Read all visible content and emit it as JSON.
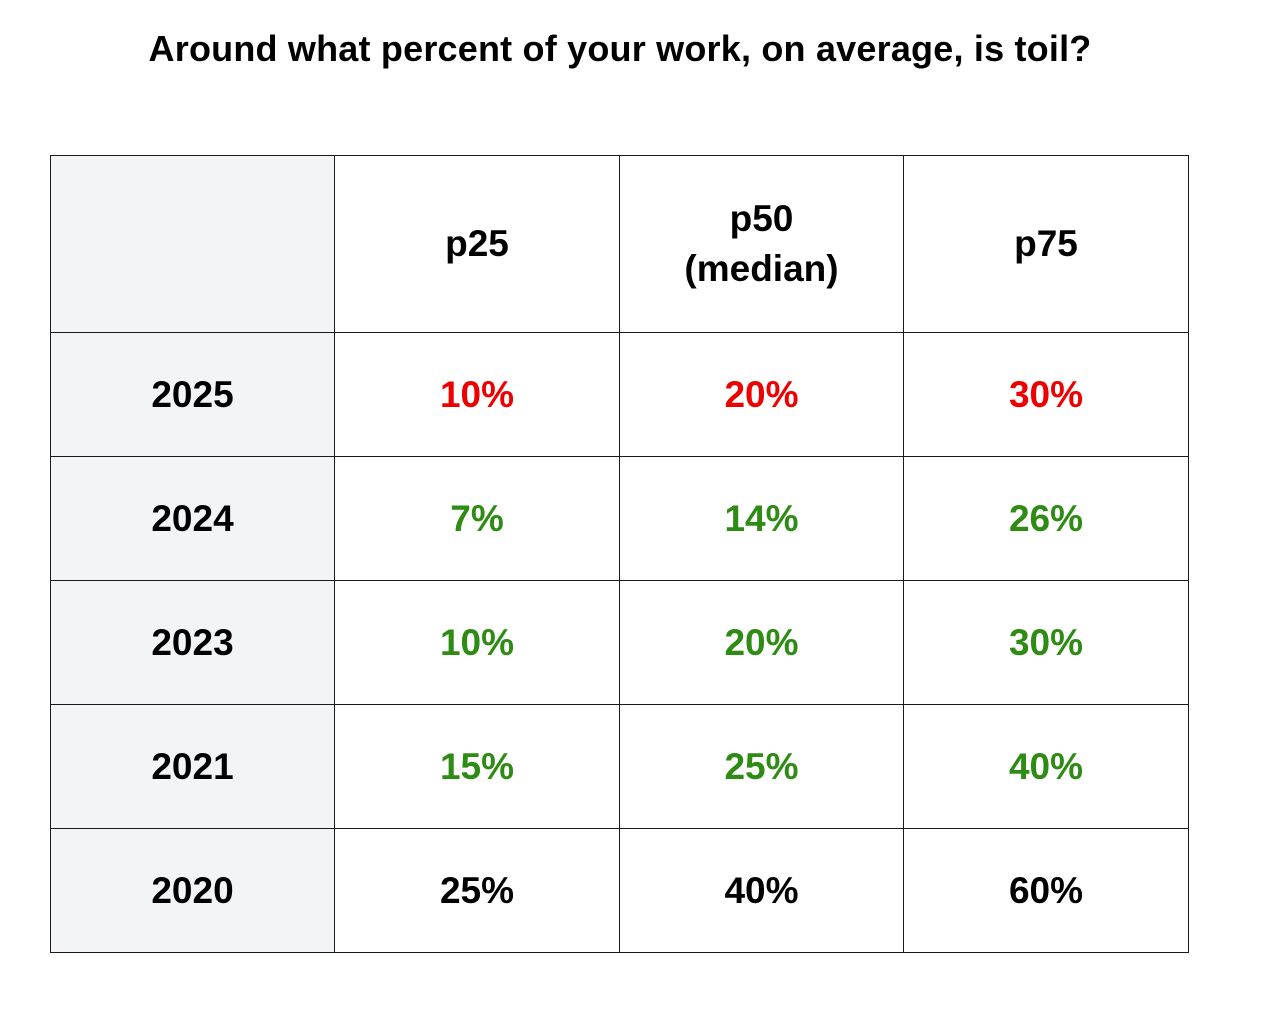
{
  "chart_data": {
    "type": "table",
    "title": "Around what percent of your work, on average, is toil?",
    "columns": [
      {
        "line1": "p25",
        "line2": ""
      },
      {
        "line1": "p50",
        "line2": "(median)"
      },
      {
        "line1": "p75",
        "line2": ""
      }
    ],
    "rows": [
      {
        "year": "2025",
        "values": [
          "10%",
          "20%",
          "30%"
        ],
        "color": "#ee0000"
      },
      {
        "year": "2024",
        "values": [
          "7%",
          "14%",
          "26%"
        ],
        "color": "#2e8b14"
      },
      {
        "year": "2023",
        "values": [
          "10%",
          "20%",
          "30%"
        ],
        "color": "#2e8b14"
      },
      {
        "year": "2021",
        "values": [
          "15%",
          "25%",
          "40%"
        ],
        "color": "#2e8b14"
      },
      {
        "year": "2020",
        "values": [
          "25%",
          "40%",
          "60%"
        ],
        "color": "#000000"
      }
    ],
    "header_background": "#f3f4f6"
  }
}
